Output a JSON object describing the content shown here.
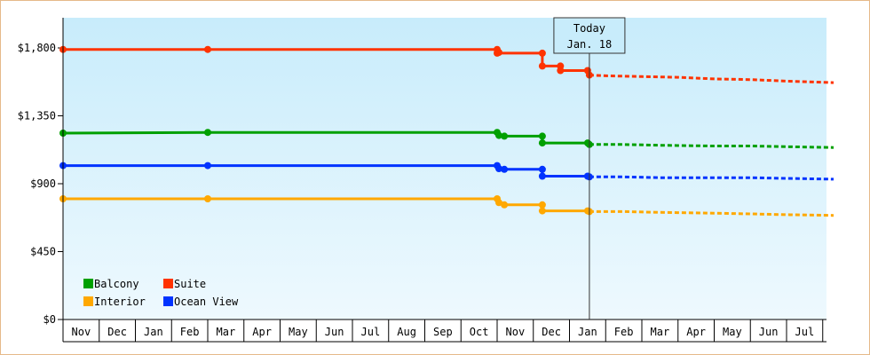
{
  "chart_data": {
    "type": "line",
    "title": "",
    "xlabel": "",
    "ylabel": "",
    "ylim": [
      0,
      2000
    ],
    "y_ticks": [
      {
        "value": 0,
        "label": "$0"
      },
      {
        "value": 450,
        "label": "$450"
      },
      {
        "value": 900,
        "label": "$900"
      },
      {
        "value": 1350,
        "label": "$1,350"
      },
      {
        "value": 1800,
        "label": "$1,800"
      }
    ],
    "x_months": [
      "Nov",
      "Dec",
      "Jan",
      "Feb",
      "Mar",
      "Apr",
      "May",
      "Jun",
      "Jul",
      "Aug",
      "Sep",
      "Oct",
      "Nov",
      "Dec",
      "Jan",
      "Feb",
      "Mar",
      "Apr",
      "May",
      "Jun",
      "Jul"
    ],
    "today": {
      "line1": "Today",
      "line2": "Jan. 18",
      "month_index": 14.55
    },
    "grid": false,
    "legend_placement": "bottom-left",
    "legend": [
      {
        "name": "Balcony",
        "color": "#00a000"
      },
      {
        "name": "Suite",
        "color": "#ff3300"
      },
      {
        "name": "Interior",
        "color": "#ffa800"
      },
      {
        "name": "Ocean View",
        "color": "#0033ff"
      }
    ],
    "series": [
      {
        "name": "Suite",
        "color": "#ff3300",
        "points": [
          [
            0,
            1790
          ],
          [
            4,
            1790
          ],
          [
            12,
            1790
          ],
          [
            12.05,
            1770
          ],
          [
            12,
            1765
          ],
          [
            13.25,
            1765
          ],
          [
            13.25,
            1680
          ],
          [
            13.75,
            1680
          ],
          [
            13.75,
            1650
          ],
          [
            14.5,
            1650
          ],
          [
            14.55,
            1620
          ]
        ],
        "forecast": [
          [
            14.55,
            1620
          ],
          [
            15,
            1615
          ],
          [
            16,
            1610
          ],
          [
            17,
            1605
          ],
          [
            18,
            1595
          ],
          [
            19,
            1590
          ],
          [
            20,
            1580
          ],
          [
            21.3,
            1570
          ]
        ]
      },
      {
        "name": "Balcony",
        "color": "#00a000",
        "points": [
          [
            0,
            1235
          ],
          [
            4,
            1240
          ],
          [
            12,
            1240
          ],
          [
            12.05,
            1220
          ],
          [
            12.2,
            1215
          ],
          [
            13.25,
            1215
          ],
          [
            13.25,
            1170
          ],
          [
            14.5,
            1170
          ],
          [
            14.55,
            1160
          ]
        ],
        "forecast": [
          [
            14.55,
            1160
          ],
          [
            15.5,
            1160
          ],
          [
            16.5,
            1155
          ],
          [
            18,
            1150
          ],
          [
            19,
            1150
          ],
          [
            20,
            1145
          ],
          [
            21.3,
            1140
          ]
        ]
      },
      {
        "name": "Ocean View",
        "color": "#0033ff",
        "points": [
          [
            0,
            1020
          ],
          [
            4,
            1020
          ],
          [
            12,
            1020
          ],
          [
            12.05,
            1000
          ],
          [
            12.2,
            995
          ],
          [
            13.25,
            995
          ],
          [
            13.25,
            950
          ],
          [
            14.5,
            950
          ],
          [
            14.55,
            945
          ]
        ],
        "forecast": [
          [
            14.55,
            945
          ],
          [
            15.5,
            945
          ],
          [
            16.5,
            940
          ],
          [
            18,
            940
          ],
          [
            19,
            940
          ],
          [
            20,
            935
          ],
          [
            21.3,
            930
          ]
        ]
      },
      {
        "name": "Interior",
        "color": "#ffa800",
        "points": [
          [
            0,
            800
          ],
          [
            4,
            800
          ],
          [
            12,
            800
          ],
          [
            12.05,
            775
          ],
          [
            12.2,
            760
          ],
          [
            13.25,
            760
          ],
          [
            13.25,
            720
          ],
          [
            14.5,
            720
          ],
          [
            14.55,
            715
          ]
        ],
        "forecast": [
          [
            14.55,
            715
          ],
          [
            15.5,
            715
          ],
          [
            16.5,
            710
          ],
          [
            18,
            705
          ],
          [
            19,
            700
          ],
          [
            20,
            695
          ],
          [
            21.3,
            690
          ]
        ]
      }
    ]
  }
}
